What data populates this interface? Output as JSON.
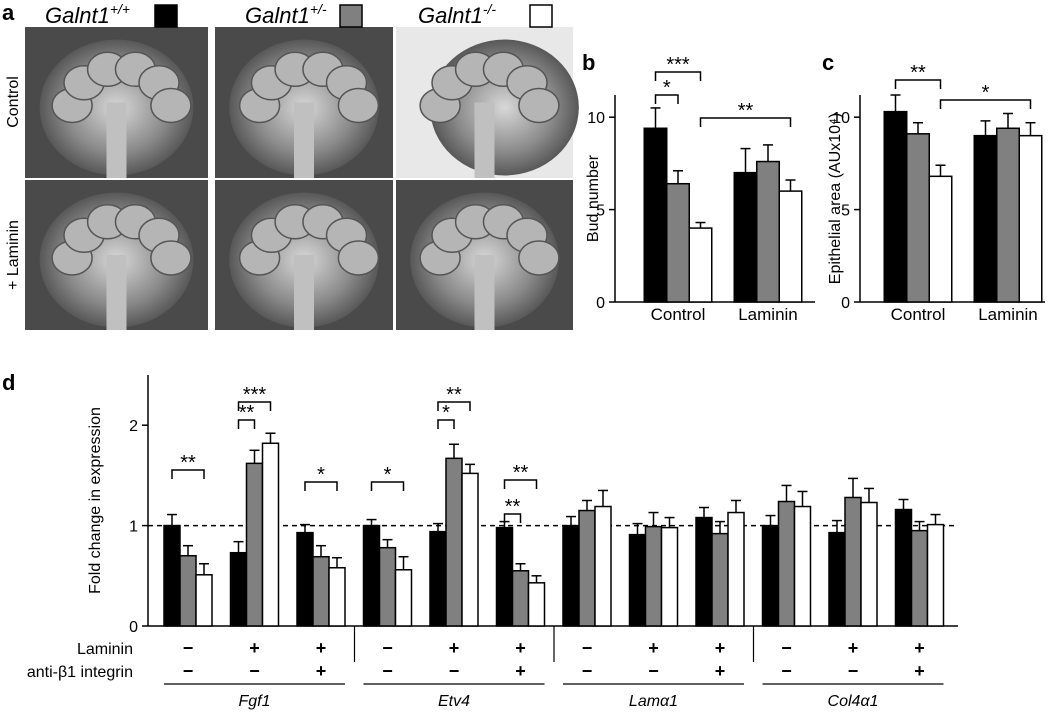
{
  "panel_a": {
    "label": "a",
    "rows": [
      "Control",
      "+ Laminin"
    ]
  },
  "legend": [
    {
      "name": "Galnt1",
      "sup": "+/+",
      "color": "#000000"
    },
    {
      "name": "Galnt1",
      "sup": "+/-",
      "color": "#808080"
    },
    {
      "name": "Galnt1",
      "sup": "-/-",
      "color": "#ffffff"
    }
  ],
  "chart_data": [
    {
      "type": "bar",
      "label": "b",
      "ylabel": "Bud number",
      "categories": [
        "Control",
        "Laminin"
      ],
      "series": [
        {
          "color": "#000000",
          "values": [
            9.4,
            7.0
          ],
          "errors": [
            1.1,
            1.3
          ]
        },
        {
          "color": "#808080",
          "values": [
            6.4,
            7.6
          ],
          "errors": [
            0.7,
            0.9
          ]
        },
        {
          "color": "#ffffff",
          "values": [
            4.0,
            6.0
          ],
          "errors": [
            0.3,
            0.6
          ]
        }
      ],
      "ylim": [
        0,
        11.2
      ],
      "yticks": [
        0,
        5,
        10
      ],
      "annotations": [
        "*",
        "***",
        "**"
      ]
    },
    {
      "type": "bar",
      "label": "c",
      "ylabel": "Epithelial area (AUx10⁴)",
      "categories": [
        "Control",
        "Laminin"
      ],
      "series": [
        {
          "color": "#000000",
          "values": [
            10.3,
            9.0
          ],
          "errors": [
            0.9,
            0.8
          ]
        },
        {
          "color": "#808080",
          "values": [
            9.1,
            9.4
          ],
          "errors": [
            0.6,
            0.8
          ]
        },
        {
          "color": "#ffffff",
          "values": [
            6.8,
            9.0
          ],
          "errors": [
            0.6,
            0.7
          ]
        }
      ],
      "ylim": [
        0,
        11.2
      ],
      "yticks": [
        0,
        5,
        10
      ],
      "annotations": [
        "**",
        "*"
      ]
    },
    {
      "type": "bar",
      "label": "d",
      "ylabel": "Fold change in expression",
      "rows": [
        {
          "label": "Laminin",
          "values": [
            "−",
            "+",
            "+",
            "−",
            "+",
            "+",
            "−",
            "+",
            "+",
            "−",
            "+",
            "+"
          ]
        },
        {
          "label": "anti-β1 integrin",
          "values": [
            "−",
            "−",
            "+",
            "−",
            "−",
            "+",
            "−",
            "−",
            "+",
            "−",
            "−",
            "+"
          ]
        }
      ],
      "genes": [
        "Fgf1",
        "Etv4",
        "Lamα1",
        "Col4α1"
      ],
      "series": [
        {
          "color": "#000000",
          "values": [
            1.0,
            0.73,
            0.93,
            1.0,
            0.94,
            0.98,
            1.0,
            0.91,
            1.08,
            1.0,
            0.93,
            1.16
          ],
          "errors": [
            0.11,
            0.11,
            0.08,
            0.06,
            0.08,
            0.06,
            0.09,
            0.11,
            0.1,
            0.1,
            0.12,
            0.1
          ]
        },
        {
          "color": "#808080",
          "values": [
            0.7,
            1.62,
            0.69,
            0.78,
            1.67,
            0.55,
            1.15,
            0.99,
            0.92,
            1.24,
            1.28,
            0.95
          ],
          "errors": [
            0.1,
            0.13,
            0.11,
            0.08,
            0.14,
            0.07,
            0.1,
            0.14,
            0.12,
            0.16,
            0.19,
            0.09
          ]
        },
        {
          "color": "#ffffff",
          "values": [
            0.51,
            1.82,
            0.58,
            0.56,
            1.52,
            0.43,
            1.19,
            0.98,
            1.13,
            1.19,
            1.23,
            1.01
          ],
          "errors": [
            0.11,
            0.1,
            0.1,
            0.13,
            0.09,
            0.07,
            0.16,
            0.1,
            0.12,
            0.15,
            0.14,
            0.1
          ]
        }
      ],
      "reference_line": 1,
      "ylim": [
        0,
        2.5
      ],
      "yticks": [
        0,
        1,
        2
      ],
      "annotations": [
        "**",
        "**",
        "***",
        "*",
        "*",
        "*",
        "**",
        "**",
        "**"
      ]
    }
  ]
}
